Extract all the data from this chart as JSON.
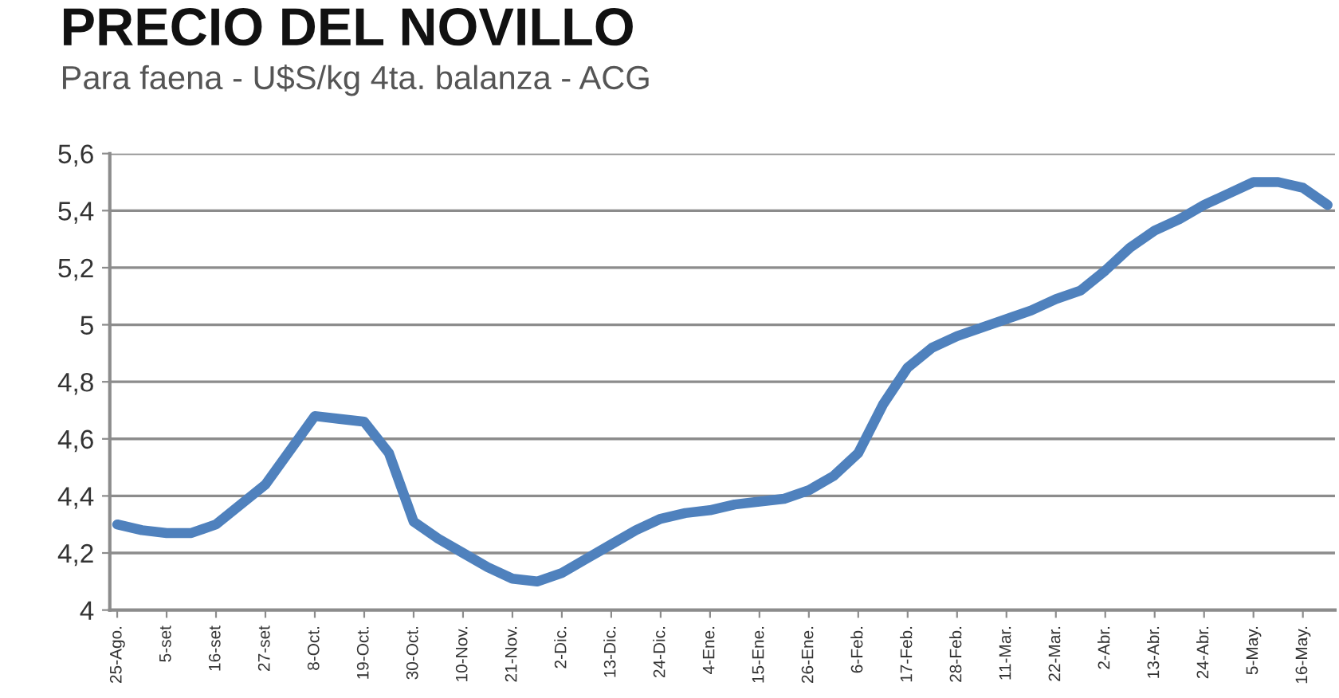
{
  "chart_data": {
    "type": "line",
    "title": "PRECIO DEL NOVILLO",
    "subtitle": "Para faena - U$S/kg 4ta. balanza - ACG",
    "categories": [
      "25-Ago.",
      null,
      "5-set",
      null,
      "16-set",
      null,
      "27-set",
      null,
      "8-Oct.",
      null,
      "19-Oct.",
      null,
      "30-Oct.",
      null,
      "10-Nov.",
      null,
      "21-Nov.",
      null,
      "2-Dic.",
      null,
      "13-Dic.",
      null,
      "24-Dic.",
      null,
      "4-Ene.",
      null,
      "15-Ene.",
      null,
      "26-Ene.",
      null,
      "6-Feb.",
      null,
      "17-Feb.",
      null,
      "28-Feb.",
      null,
      "11-Mar.",
      null,
      "22-Mar.",
      null,
      "2-Abr.",
      null,
      "13-Abr.",
      null,
      "24-Abr.",
      null,
      "5-May.",
      null,
      "16-May.",
      null
    ],
    "series": [
      {
        "color": "#4f81bd",
        "values": [
          4.3,
          4.28,
          4.27,
          4.27,
          4.3,
          4.37,
          4.44,
          4.56,
          4.68,
          4.67,
          4.66,
          4.55,
          4.31,
          4.25,
          4.2,
          4.15,
          4.11,
          4.1,
          4.13,
          4.18,
          4.23,
          4.28,
          4.32,
          4.34,
          4.35,
          4.37,
          4.38,
          4.39,
          4.42,
          4.47,
          4.55,
          4.72,
          4.85,
          4.92,
          4.96,
          4.99,
          5.02,
          5.05,
          5.09,
          5.12,
          5.19,
          5.27,
          5.33,
          5.37,
          5.42,
          5.46,
          5.5,
          5.5,
          5.48,
          5.42
        ]
      }
    ],
    "ylim": [
      4,
      5.6
    ],
    "yticks": [
      4,
      {
        "value": 4.2,
        "label": "4,2"
      },
      {
        "value": 4.4,
        "label": "4,4"
      },
      {
        "value": 4.6,
        "label": "4,6"
      },
      {
        "value": 4.8,
        "label": "4,8"
      },
      5,
      {
        "value": 5.2,
        "label": "5,2"
      },
      {
        "value": 5.4,
        "label": "5,4"
      },
      {
        "value": 5.6,
        "label": "5,6"
      }
    ],
    "grid": "y",
    "legend": false,
    "marker": "none",
    "line_style": "solid"
  }
}
